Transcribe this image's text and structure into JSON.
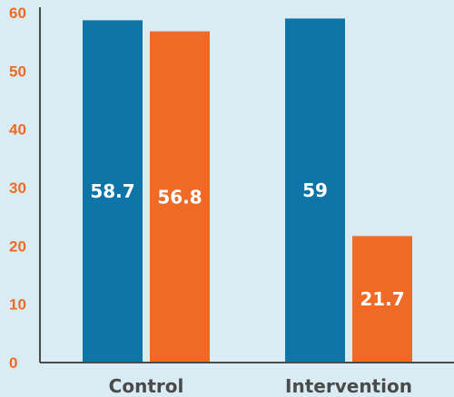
{
  "chart_data": {
    "type": "bar",
    "categories": [
      "Control",
      "Intervention"
    ],
    "series": [
      {
        "values": [
          58.7,
          59
        ],
        "color": "#0f75a8"
      },
      {
        "values": [
          56.8,
          21.7
        ],
        "color": "#ef6a25"
      }
    ],
    "value_labels": [
      [
        "58.7",
        "59"
      ],
      [
        "56.8",
        "21.7"
      ]
    ],
    "yticks": [
      "0",
      "10",
      "20",
      "30",
      "40",
      "50",
      "60"
    ],
    "ylim": [
      0,
      60
    ],
    "grid": false,
    "title": "",
    "xlabel": "",
    "ylabel": ""
  },
  "colors": {
    "background": "#daecf3",
    "axis": "#4a4a4a",
    "tick_label": "#ef6a25",
    "category_label": "#4a4a4a"
  }
}
